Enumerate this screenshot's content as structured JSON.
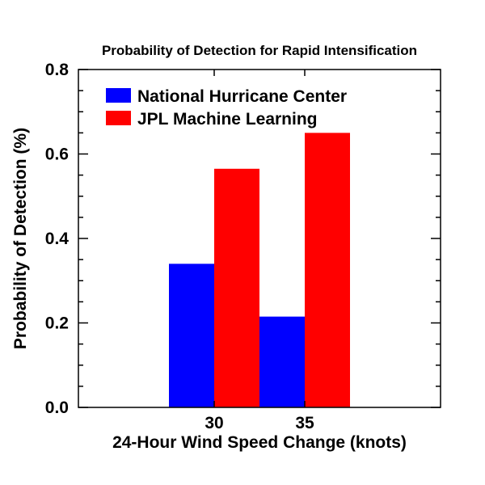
{
  "chart_data": {
    "type": "bar",
    "title": "Probability of Detection for Rapid Intensification",
    "xlabel": "24-Hour Wind Speed Change (knots)",
    "ylabel": "Probability of Detection (%)",
    "categories": [
      "30",
      "35"
    ],
    "series": [
      {
        "name": "National Hurricane Center",
        "values": [
          0.34,
          0.215
        ],
        "color": "#0000ff"
      },
      {
        "name": "JPL Machine Learning",
        "values": [
          0.565,
          0.65
        ],
        "color": "#ff0000"
      }
    ],
    "ylim": [
      0,
      0.8
    ],
    "yticks": [
      "0.0",
      "0.2",
      "0.4",
      "0.6",
      "0.8"
    ],
    "grid": false,
    "legend": "top-left"
  }
}
